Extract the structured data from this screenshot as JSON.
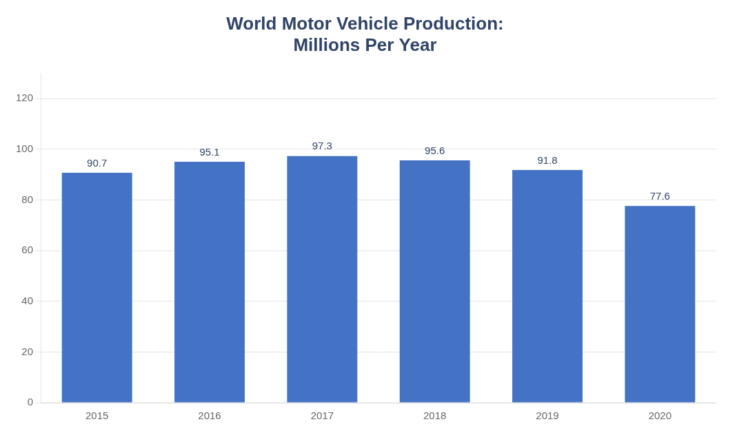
{
  "chart_data": {
    "type": "bar",
    "title": "World Motor Vehicle Production:\nMillions Per Year",
    "categories": [
      "2015",
      "2016",
      "2017",
      "2018",
      "2019",
      "2020"
    ],
    "values": [
      90.7,
      95.1,
      97.3,
      95.6,
      91.8,
      77.6
    ],
    "color": "#4472C4",
    "ylim": [
      0,
      130
    ],
    "yticks": [
      0,
      20,
      40,
      60,
      80,
      100,
      120
    ],
    "grid": true,
    "data_labels": true
  }
}
